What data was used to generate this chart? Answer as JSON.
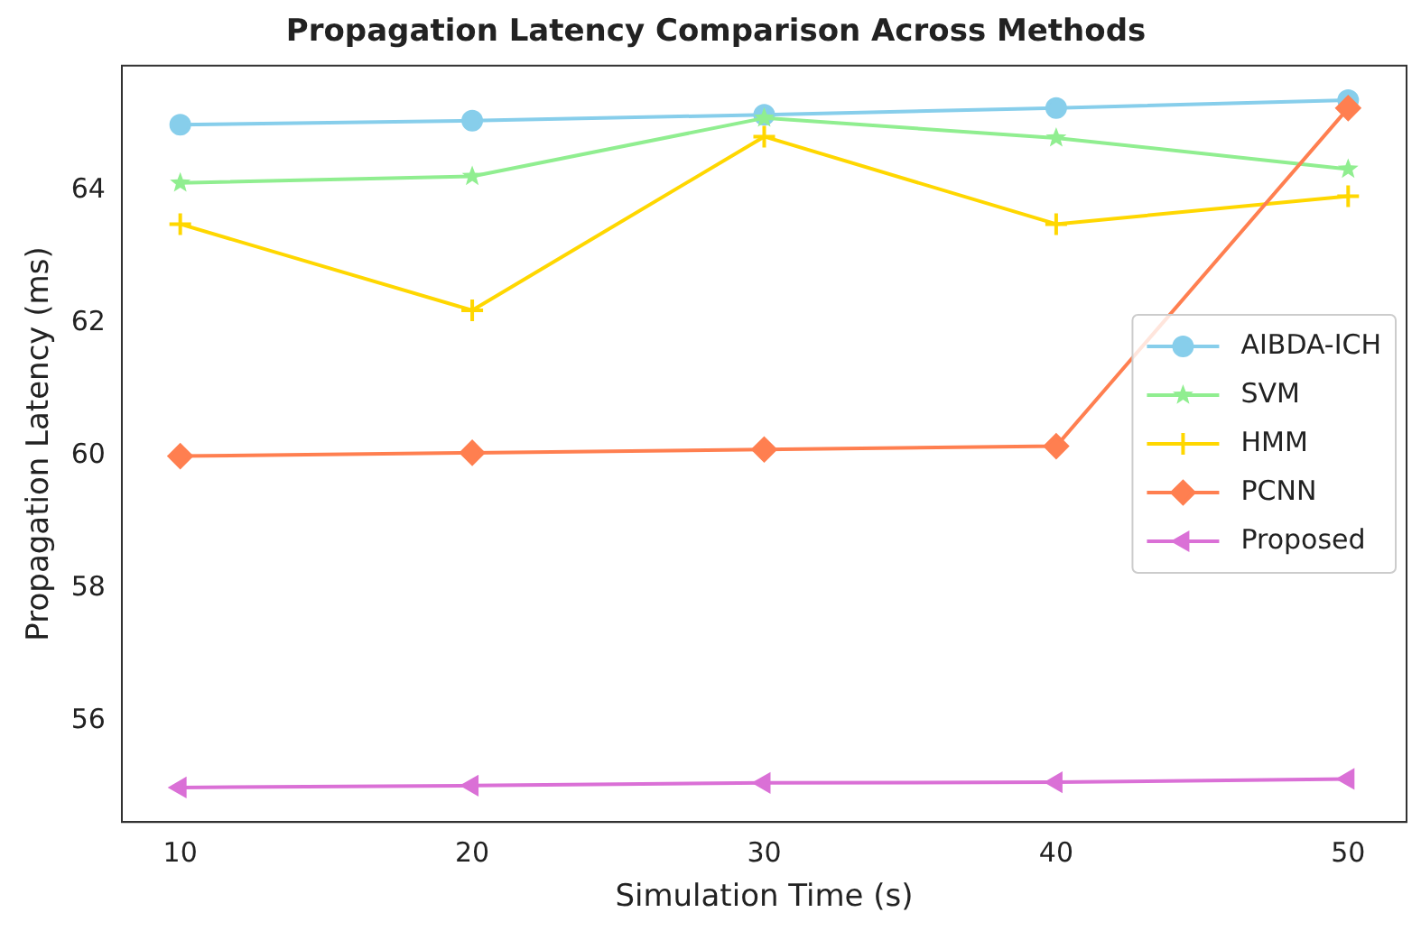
{
  "chart_data": {
    "type": "line",
    "title": "Propagation Latency Comparison Across Methods",
    "xlabel": "Simulation Time (s)",
    "ylabel": "Propagation Latency (ms)",
    "x": [
      10,
      20,
      30,
      40,
      50
    ],
    "series": [
      {
        "name": "AIBDA-ICH",
        "color": "#87ceeb",
        "marker": "circle",
        "values": [
          65.0,
          65.06,
          65.15,
          65.25,
          65.37
        ]
      },
      {
        "name": "SVM",
        "color": "#90ee90",
        "marker": "star",
        "values": [
          64.12,
          64.22,
          65.1,
          64.8,
          64.33
        ]
      },
      {
        "name": "HMM",
        "color": "#ffd700",
        "marker": "cross",
        "values": [
          63.5,
          62.2,
          64.82,
          63.5,
          63.92
        ]
      },
      {
        "name": "PCNN",
        "color": "#ff7f50",
        "marker": "diamond",
        "values": [
          60.0,
          60.05,
          60.1,
          60.15,
          65.25
        ]
      },
      {
        "name": "Proposed",
        "color": "#da70d6",
        "marker": "triangle",
        "values": [
          55.0,
          55.03,
          55.07,
          55.08,
          55.13
        ]
      }
    ],
    "xlim": [
      8,
      52
    ],
    "xticks": [
      10,
      20,
      30,
      40,
      50
    ],
    "ylim": [
      54.48,
      65.89
    ],
    "yticks": [
      56,
      58,
      60,
      62,
      64
    ],
    "legend": "center right",
    "grid": false,
    "line_style": "solid"
  }
}
